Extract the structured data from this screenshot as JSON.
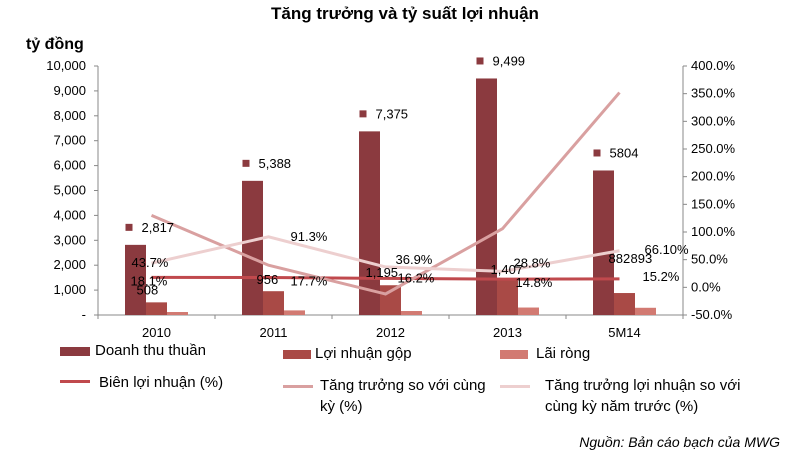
{
  "title": "Tăng trưởng và tỷ suất lợi nhuận",
  "unit_label": "tỷ đồng",
  "source": "Nguồn: Bản cáo bạch của MWG",
  "colors": {
    "revenue": "#8B3A3F",
    "gross_profit": "#A94A46",
    "net_profit": "#D27A72",
    "margin_line": "#C0494D",
    "growth_line": "#D9A0A0",
    "profit_growth_line": "#EDCFCF"
  },
  "chart_data": {
    "type": "bar",
    "categories": [
      "2010",
      "2011",
      "2012",
      "2013",
      "5M14"
    ],
    "left_axis": {
      "ylim": [
        0,
        10000
      ],
      "ticks": [
        "-",
        "1,000",
        "2,000",
        "3,000",
        "4,000",
        "5,000",
        "6,000",
        "7,000",
        "8,000",
        "9,000",
        "10,000"
      ]
    },
    "right_axis": {
      "ylim": [
        -50,
        400
      ],
      "ticks": [
        "-50.0%",
        "0.0%",
        "50.0%",
        "100.0%",
        "150.0%",
        "200.0%",
        "250.0%",
        "300.0%",
        "350.0%",
        "400.0%"
      ]
    },
    "grid": false,
    "series": [
      {
        "name": "Doanh thu thuần",
        "kind": "bar",
        "axis": "left",
        "values": [
          2817,
          5388,
          7375,
          9499,
          5804
        ],
        "labels": [
          "2,817",
          "5,388",
          "7,375",
          "9,499",
          "5804"
        ]
      },
      {
        "name": "Lợi nhuận gộp",
        "kind": "bar",
        "axis": "left",
        "values": [
          508,
          956,
          1195,
          1407,
          882
        ],
        "labels": [
          "508",
          "956",
          "1,195",
          "1,407",
          "882"
        ]
      },
      {
        "name": "Lãi ròng",
        "kind": "bar",
        "axis": "left",
        "values": [
          120,
          185,
          160,
          300,
          290
        ]
      },
      {
        "name": "Biên lợi nhuận (%)",
        "kind": "line",
        "axis": "right",
        "values": [
          18.1,
          17.7,
          16.2,
          14.8,
          15.2
        ],
        "labels": [
          "18.1%",
          "17.7%",
          "16.2%",
          "14.8%",
          "15.2%"
        ]
      },
      {
        "name": "Tăng trưởng so với cùng kỳ (%)",
        "kind": "line",
        "axis": "right",
        "values": [
          130,
          40,
          -12,
          106,
          352
        ]
      },
      {
        "name": "Tăng trưởng lợi nhuận so với cùng kỳ năm trước (%)",
        "kind": "line",
        "axis": "right",
        "values": [
          43.7,
          91.3,
          36.9,
          28.8,
          66.1
        ],
        "labels": [
          "43.7%",
          "91.3%",
          "36.9%",
          "28.8%",
          "66.10%"
        ]
      }
    ],
    "extra_labels": [
      "893"
    ],
    "legend_position": "bottom"
  }
}
